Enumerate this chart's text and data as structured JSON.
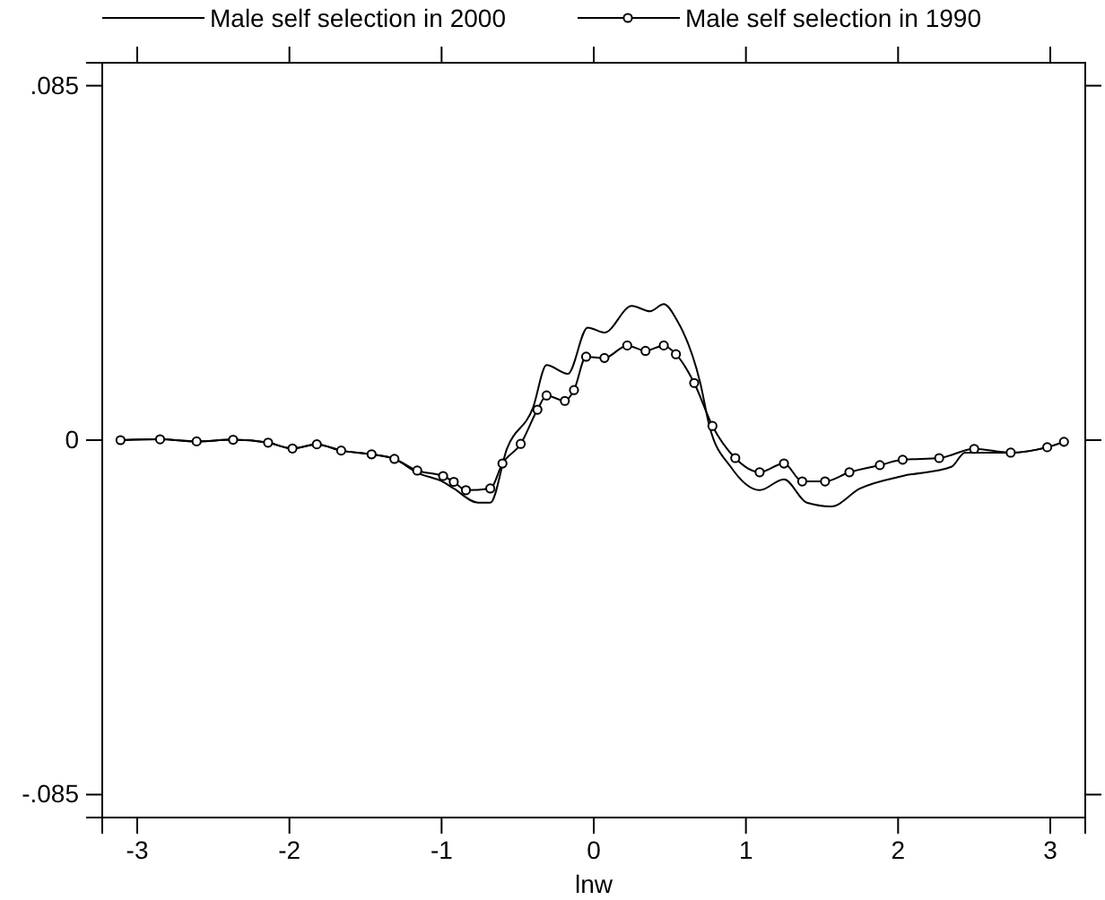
{
  "chart_data": {
    "type": "line",
    "xlabel": "lnw",
    "xlim": [
      -3.23,
      3.23
    ],
    "xticks": [
      -3,
      -2,
      -1,
      0,
      1,
      2,
      3
    ],
    "ylim": [
      -0.0905,
      0.0905
    ],
    "yticks": [
      {
        "value": -0.085,
        "label": "-.085"
      },
      0,
      {
        "value": 0.085,
        "label": ".085"
      }
    ],
    "legend": "top",
    "grid": false,
    "series": [
      {
        "name": "Male self selection in 2000",
        "color": "#000000",
        "marker": "none",
        "x": [
          -3.11,
          -2.85,
          -2.61,
          -2.37,
          -2.14,
          -1.98,
          -1.82,
          -1.66,
          -1.46,
          -1.31,
          -1.16,
          -0.99,
          -0.92,
          -0.76,
          -0.68,
          -0.57,
          -0.4,
          -0.31,
          -0.17,
          -0.04,
          0.07,
          0.25,
          0.37,
          0.46,
          0.54,
          0.7,
          0.76,
          0.9,
          1.09,
          1.25,
          1.4,
          1.56,
          1.75,
          2.03,
          2.35,
          2.44,
          2.74,
          2.98,
          3.09
        ],
        "values": [
          0,
          0.0002,
          -0.0003,
          0.0001,
          -0.0006,
          -0.002,
          -0.001,
          -0.0025,
          -0.0034,
          -0.0045,
          -0.0078,
          -0.01,
          -0.0116,
          -0.015,
          -0.015,
          -0.002,
          0.0077,
          0.018,
          0.0159,
          0.027,
          0.0258,
          0.0322,
          0.0309,
          0.0326,
          0.0292,
          0.0137,
          0.0034,
          -0.0064,
          -0.012,
          -0.0094,
          -0.015,
          -0.0159,
          -0.0116,
          -0.0086,
          -0.0064,
          -0.003,
          -0.003,
          -0.0017,
          -0.0004
        ]
      },
      {
        "name": "Male self selection in 1990",
        "color": "#000000",
        "marker": "circle",
        "x": [
          -3.11,
          -2.85,
          -2.61,
          -2.37,
          -2.14,
          -1.98,
          -1.82,
          -1.66,
          -1.46,
          -1.31,
          -1.16,
          -0.99,
          -0.92,
          -0.84,
          -0.68,
          -0.6,
          -0.48,
          -0.37,
          -0.31,
          -0.19,
          -0.13,
          -0.05,
          0.07,
          0.22,
          0.34,
          0.46,
          0.54,
          0.66,
          0.78,
          0.93,
          1.09,
          1.25,
          1.37,
          1.52,
          1.68,
          1.88,
          2.03,
          2.27,
          2.5,
          2.74,
          2.98,
          3.09
        ],
        "values": [
          0,
          0.0002,
          -0.0003,
          0.0001,
          -0.0006,
          -0.002,
          -0.001,
          -0.0025,
          -0.0034,
          -0.0045,
          -0.0073,
          -0.0086,
          -0.01,
          -0.012,
          -0.0116,
          -0.0056,
          -0.0009,
          0.0073,
          0.0107,
          0.0094,
          0.012,
          0.02,
          0.0197,
          0.0227,
          0.0214,
          0.0227,
          0.0206,
          0.0137,
          0.0034,
          -0.0043,
          -0.0077,
          -0.0056,
          -0.0099,
          -0.0099,
          -0.0077,
          -0.006,
          -0.0047,
          -0.0043,
          -0.0021,
          -0.003,
          -0.0017,
          -0.0004
        ]
      }
    ]
  }
}
